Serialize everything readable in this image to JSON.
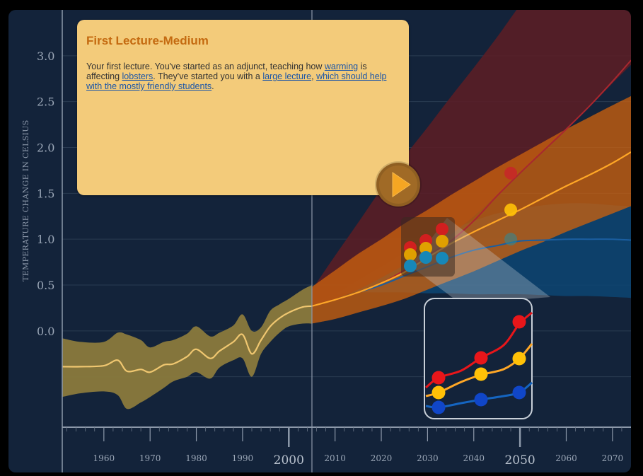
{
  "card": {
    "title": "First Lecture-Medium",
    "segments": [
      {
        "text": "Your first lecture. You've started as an adjunct, teaching how ",
        "link": false
      },
      {
        "text": "warming",
        "link": true
      },
      {
        "text": " is affecting ",
        "link": false
      },
      {
        "text": "lobsters",
        "link": true
      },
      {
        "text": ". They've started you with a ",
        "link": false
      },
      {
        "text": "large lecture",
        "link": true
      },
      {
        "text": ", ",
        "link": false
      },
      {
        "text": "which should help with the mostly friendly students",
        "link": true
      },
      {
        "text": ".",
        "link": false
      }
    ],
    "play_icon": "play-icon"
  },
  "colors": {
    "background": "#13233a",
    "historical_band": "#8a7a3c",
    "historical_line": "#f0c770",
    "high_band": "#5a1e26",
    "high_line": "#a8272f",
    "mid_band": "#c9600e",
    "mid_line": "#ffa726",
    "low_band": "#0d4573",
    "low_line": "#1a5ea0",
    "card": "#f3cb7a",
    "card_title": "#c46a10",
    "link": "#1a55a8"
  },
  "chart_data": {
    "type": "line",
    "ylabel": "TEMPERATURE CHANGE IN CELSIUS",
    "xlabel": "",
    "xlim": [
      1951,
      2074
    ],
    "ylim": [
      -1.05,
      3.5
    ],
    "yticks": [
      "3.0",
      "2.5",
      "2.0",
      "1.5",
      "1.0",
      "0.5",
      "0.0"
    ],
    "xticks": [
      {
        "year": 1960,
        "label": "1960",
        "major": false
      },
      {
        "year": 1970,
        "label": "1970",
        "major": false
      },
      {
        "year": 1980,
        "label": "1980",
        "major": false
      },
      {
        "year": 1990,
        "label": "1990",
        "major": false
      },
      {
        "year": 2000,
        "label": "2000",
        "major": true
      },
      {
        "year": 2010,
        "label": "2010",
        "major": false
      },
      {
        "year": 2020,
        "label": "2020",
        "major": false
      },
      {
        "year": 2030,
        "label": "2030",
        "major": false
      },
      {
        "year": 2040,
        "label": "2040",
        "major": false
      },
      {
        "year": 2050,
        "label": "2050",
        "major": true
      },
      {
        "year": 2060,
        "label": "2060",
        "major": false
      },
      {
        "year": 2070,
        "label": "2070",
        "major": false
      }
    ],
    "divider_year": 2005,
    "series": [
      {
        "key": "historical",
        "x": [
          1951,
          1955,
          1960,
          1963,
          1965,
          1968,
          1970,
          1973,
          1975,
          1978,
          1980,
          1983,
          1985,
          1988,
          1990,
          1992,
          1994,
          1996,
          1998,
          2000,
          2003,
          2005
        ],
        "y": [
          -0.39,
          -0.39,
          -0.38,
          -0.32,
          -0.44,
          -0.42,
          -0.45,
          -0.37,
          -0.36,
          -0.28,
          -0.2,
          -0.3,
          -0.22,
          -0.12,
          -0.04,
          -0.25,
          -0.1,
          0.05,
          0.14,
          0.2,
          0.26,
          0.27
        ],
        "lower": [
          -0.72,
          -0.68,
          -0.66,
          -0.7,
          -0.85,
          -0.78,
          -0.72,
          -0.62,
          -0.55,
          -0.5,
          -0.45,
          -0.52,
          -0.4,
          -0.32,
          -0.3,
          -0.5,
          -0.25,
          -0.12,
          -0.02,
          0.05,
          0.08,
          0.08
        ],
        "upper": [
          -0.08,
          -0.12,
          -0.12,
          -0.02,
          -0.04,
          -0.1,
          -0.18,
          -0.12,
          -0.1,
          -0.03,
          0.05,
          -0.06,
          -0.02,
          0.06,
          0.18,
          0.0,
          0.04,
          0.22,
          0.29,
          0.35,
          0.45,
          0.5
        ]
      },
      {
        "key": "high",
        "x": [
          2005,
          2010,
          2015,
          2020,
          2025,
          2030,
          2035,
          2040,
          2045,
          2050,
          2055,
          2060,
          2065,
          2070,
          2074
        ],
        "y": [
          0.27,
          0.34,
          0.42,
          0.52,
          0.66,
          0.82,
          0.98,
          1.2,
          1.47,
          1.72,
          1.96,
          2.2,
          2.45,
          2.72,
          2.95
        ],
        "lower": [
          0.27,
          0.35,
          0.45,
          0.58,
          0.72,
          0.88,
          1.05,
          1.25,
          1.48,
          1.72,
          1.96,
          2.2,
          2.44,
          2.7,
          2.9
        ],
        "upper": [
          0.45,
          0.82,
          1.18,
          1.55,
          1.9,
          2.22,
          2.55,
          2.87,
          3.2,
          3.55,
          3.85,
          4.2,
          4.5,
          4.8,
          5.0
        ]
      },
      {
        "key": "mid",
        "x": [
          2005,
          2010,
          2015,
          2020,
          2025,
          2030,
          2035,
          2040,
          2045,
          2050,
          2055,
          2060,
          2065,
          2070,
          2074
        ],
        "y": [
          0.27,
          0.34,
          0.42,
          0.52,
          0.64,
          0.8,
          0.95,
          1.08,
          1.2,
          1.32,
          1.45,
          1.58,
          1.7,
          1.83,
          1.95
        ],
        "lower": [
          0.08,
          0.13,
          0.2,
          0.27,
          0.35,
          0.45,
          0.55,
          0.65,
          0.76,
          0.87,
          0.97,
          1.08,
          1.18,
          1.28,
          1.36
        ],
        "upper": [
          0.48,
          0.66,
          0.84,
          1.0,
          1.17,
          1.32,
          1.48,
          1.63,
          1.78,
          1.92,
          2.06,
          2.2,
          2.33,
          2.46,
          2.56
        ]
      },
      {
        "key": "low",
        "x": [
          2005,
          2010,
          2015,
          2020,
          2025,
          2030,
          2035,
          2040,
          2045,
          2050,
          2055,
          2060,
          2065,
          2070,
          2074
        ],
        "y": [
          0.27,
          0.34,
          0.42,
          0.5,
          0.6,
          0.7,
          0.8,
          0.88,
          0.93,
          0.98,
          0.99,
          1.0,
          1.0,
          1.0,
          0.99
        ],
        "lower": [
          0.27,
          0.4,
          0.42,
          0.42,
          0.42,
          0.41,
          0.41,
          0.4,
          0.4,
          0.4,
          0.39,
          0.38,
          0.38,
          0.37,
          0.36
        ],
        "upper": [
          0.3,
          0.4,
          0.55,
          0.7,
          0.85,
          1.0,
          1.1,
          1.2,
          1.28,
          1.33,
          1.37,
          1.39,
          1.39,
          1.37,
          1.36
        ]
      }
    ],
    "markers": [
      {
        "series": "high",
        "year": 2048,
        "value": 1.72
      },
      {
        "series": "mid",
        "year": 2048,
        "value": 1.32
      },
      {
        "series": "low",
        "year": 2048,
        "value": 1.0
      }
    ]
  }
}
